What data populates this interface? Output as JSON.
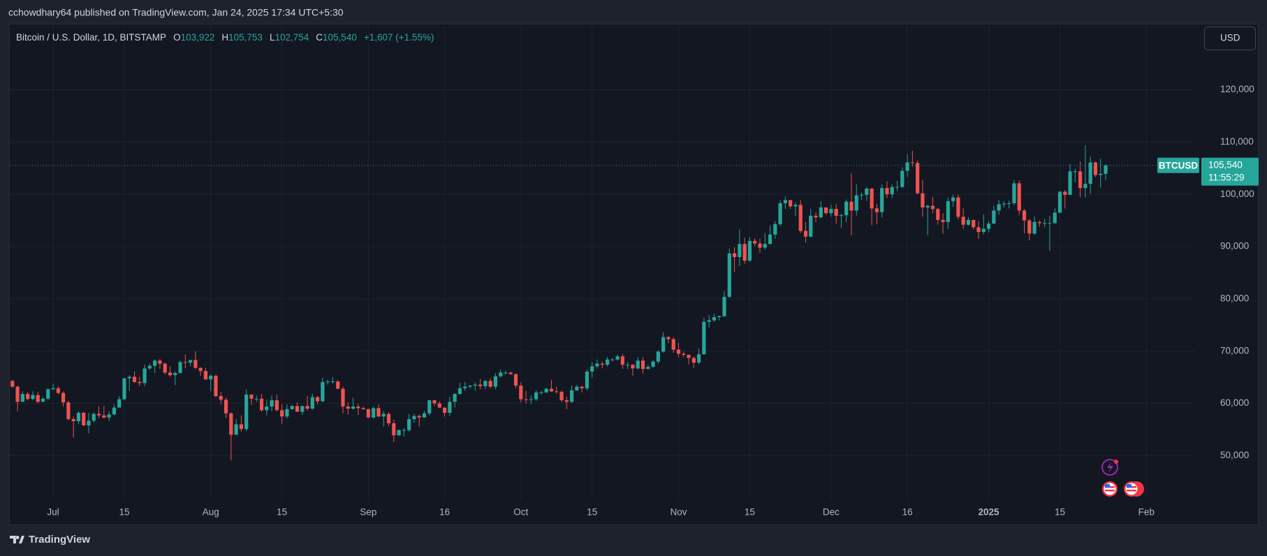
{
  "header": {
    "attribution": "cchowdhary64 published on TradingView.com, Jan 24, 2025 17:34 UTC+5:30",
    "symbol_line": "Bitcoin / U.S. Dollar, 1D, BITSTAMP",
    "ohlc": [
      {
        "key": "O",
        "value": "103,922"
      },
      {
        "key": "H",
        "value": "105,753"
      },
      {
        "key": "L",
        "value": "102,754"
      },
      {
        "key": "C",
        "value": "105,540"
      }
    ],
    "change": "+1,607 (+1.55%)",
    "currency": "USD"
  },
  "price_tag": {
    "symbol": "BTCUSD",
    "price": "105,540",
    "countdown": "11:55:29"
  },
  "footer": {
    "logo": "TradingView"
  },
  "chart_data": {
    "type": "candlestick",
    "up_color": "#26a69a",
    "down_color": "#ef5350",
    "grid": true,
    "ylim": [
      41500,
      132500
    ],
    "yticks": [
      {
        "value": 50000,
        "label": "50,000"
      },
      {
        "value": 60000,
        "label": "60,000"
      },
      {
        "value": 70000,
        "label": "70,000"
      },
      {
        "value": 80000,
        "label": "80,000"
      },
      {
        "value": 90000,
        "label": "90,000"
      },
      {
        "value": 100000,
        "label": "100,000"
      },
      {
        "value": 110000,
        "label": "110,000"
      },
      {
        "value": 120000,
        "label": "120,000"
      }
    ],
    "xticks": [
      {
        "value": "Jul 1",
        "label": "Jul"
      },
      {
        "value": "Jul 15",
        "label": "15"
      },
      {
        "value": "Aug 1",
        "label": "Aug"
      },
      {
        "value": "Aug 15",
        "label": "15"
      },
      {
        "value": "Sep 1",
        "label": "Sep"
      },
      {
        "value": "Sep 16",
        "label": "16"
      },
      {
        "value": "Oct 1",
        "label": "Oct"
      },
      {
        "value": "Oct 15",
        "label": "15"
      },
      {
        "value": "Nov 1",
        "label": "Nov"
      },
      {
        "value": "Nov 15",
        "label": "15"
      },
      {
        "value": "Dec 1",
        "label": "Dec"
      },
      {
        "value": "Dec 16",
        "label": "16"
      },
      {
        "value": "Jan 1",
        "label": "2025"
      },
      {
        "value": "Jan 15",
        "label": "15"
      },
      {
        "value": "Feb 1",
        "label": "Feb"
      }
    ],
    "x": [
      "Jun 23",
      "Jun 24",
      "Jun 25",
      "Jun 26",
      "Jun 27",
      "Jun 28",
      "Jun 29",
      "Jun 30",
      "Jul 1",
      "Jul 2",
      "Jul 3",
      "Jul 4",
      "Jul 5",
      "Jul 6",
      "Jul 7",
      "Jul 8",
      "Jul 9",
      "Jul 10",
      "Jul 11",
      "Jul 12",
      "Jul 13",
      "Jul 14",
      "Jul 15",
      "Jul 16",
      "Jul 17",
      "Jul 18",
      "Jul 19",
      "Jul 20",
      "Jul 21",
      "Jul 22",
      "Jul 23",
      "Jul 24",
      "Jul 25",
      "Jul 26",
      "Jul 27",
      "Jul 28",
      "Jul 29",
      "Jul 30",
      "Jul 31",
      "Aug 1",
      "Aug 2",
      "Aug 3",
      "Aug 4",
      "Aug 5",
      "Aug 6",
      "Aug 7",
      "Aug 8",
      "Aug 9",
      "Aug 10",
      "Aug 11",
      "Aug 12",
      "Aug 13",
      "Aug 14",
      "Aug 15",
      "Aug 16",
      "Aug 17",
      "Aug 18",
      "Aug 19",
      "Aug 20",
      "Aug 21",
      "Aug 22",
      "Aug 23",
      "Aug 24",
      "Aug 25",
      "Aug 26",
      "Aug 27",
      "Aug 28",
      "Aug 29",
      "Aug 30",
      "Aug 31",
      "Sep 1",
      "Sep 2",
      "Sep 3",
      "Sep 4",
      "Sep 5",
      "Sep 6",
      "Sep 7",
      "Sep 8",
      "Sep 9",
      "Sep 10",
      "Sep 11",
      "Sep 12",
      "Sep 13",
      "Sep 14",
      "Sep 15",
      "Sep 16",
      "Sep 17",
      "Sep 18",
      "Sep 19",
      "Sep 20",
      "Sep 21",
      "Sep 22",
      "Sep 23",
      "Sep 24",
      "Sep 25",
      "Sep 26",
      "Sep 27",
      "Sep 28",
      "Sep 29",
      "Sep 30",
      "Oct 1",
      "Oct 2",
      "Oct 3",
      "Oct 4",
      "Oct 5",
      "Oct 6",
      "Oct 7",
      "Oct 8",
      "Oct 9",
      "Oct 10",
      "Oct 11",
      "Oct 12",
      "Oct 13",
      "Oct 14",
      "Oct 15",
      "Oct 16",
      "Oct 17",
      "Oct 18",
      "Oct 19",
      "Oct 20",
      "Oct 21",
      "Oct 22",
      "Oct 23",
      "Oct 24",
      "Oct 25",
      "Oct 26",
      "Oct 27",
      "Oct 28",
      "Oct 29",
      "Oct 30",
      "Oct 31",
      "Nov 1",
      "Nov 2",
      "Nov 3",
      "Nov 4",
      "Nov 5",
      "Nov 6",
      "Nov 7",
      "Nov 8",
      "Nov 9",
      "Nov 10",
      "Nov 11",
      "Nov 12",
      "Nov 13",
      "Nov 14",
      "Nov 15",
      "Nov 16",
      "Nov 17",
      "Nov 18",
      "Nov 19",
      "Nov 20",
      "Nov 21",
      "Nov 22",
      "Nov 23",
      "Nov 24",
      "Nov 25",
      "Nov 26",
      "Nov 27",
      "Nov 28",
      "Nov 29",
      "Nov 30",
      "Dec 1",
      "Dec 2",
      "Dec 3",
      "Dec 4",
      "Dec 5",
      "Dec 6",
      "Dec 7",
      "Dec 8",
      "Dec 9",
      "Dec 10",
      "Dec 11",
      "Dec 12",
      "Dec 13",
      "Dec 14",
      "Dec 15",
      "Dec 16",
      "Dec 17",
      "Dec 18",
      "Dec 19",
      "Dec 20",
      "Dec 21",
      "Dec 22",
      "Dec 23",
      "Dec 24",
      "Dec 25",
      "Dec 26",
      "Dec 27",
      "Dec 28",
      "Dec 29",
      "Dec 30",
      "Dec 31",
      "Jan 1",
      "Jan 2",
      "Jan 3",
      "Jan 4",
      "Jan 5",
      "Jan 6",
      "Jan 7",
      "Jan 8",
      "Jan 9",
      "Jan 10",
      "Jan 11",
      "Jan 12",
      "Jan 13",
      "Jan 14",
      "Jan 15",
      "Jan 16",
      "Jan 17",
      "Jan 18",
      "Jan 19",
      "Jan 20",
      "Jan 21",
      "Jan 22",
      "Jan 23",
      "Jan 24"
    ],
    "open": [
      64300,
      63200,
      60300,
      61800,
      60850,
      61600,
      60300,
      60900,
      62700,
      62900,
      62000,
      60200,
      57000,
      56600,
      58200,
      55800,
      56700,
      58000,
      57700,
      57300,
      57900,
      59200,
      60800,
      64800,
      65100,
      64100,
      63900,
      66700,
      67200,
      68200,
      67600,
      65900,
      65400,
      65800,
      67900,
      67800,
      68300,
      66800,
      66200,
      64600,
      65300,
      61400,
      60700,
      58100,
      54000,
      56000,
      55100,
      61700,
      60900,
      60900,
      58700,
      59400,
      60600,
      58700,
      57500,
      58900,
      59500,
      58400,
      59500,
      59000,
      61200,
      60400,
      64100,
      64200,
      64200,
      62800,
      59400,
      59000,
      59400,
      59100,
      58900,
      57300,
      59100,
      57500,
      58000,
      56200,
      53900,
      54900,
      54900,
      57000,
      57600,
      57300,
      58100,
      60600,
      60000,
      59200,
      58200,
      60300,
      61800,
      62900,
      63200,
      63400,
      63600,
      63300,
      64300,
      63200,
      65200,
      65900,
      65900,
      65600,
      63400,
      60800,
      60700,
      60800,
      62100,
      62100,
      62800,
      62300,
      62200,
      60600,
      60300,
      62500,
      63200,
      62900,
      66100,
      67100,
      67600,
      67400,
      68400,
      68400,
      69000,
      67400,
      67400,
      66700,
      68200,
      66600,
      67000,
      68000,
      69900,
      72700,
      72300,
      70300,
      69500,
      69300,
      68700,
      67800,
      69400,
      75600,
      75900,
      76500,
      76700,
      80400,
      88700,
      88000,
      90500,
      87300,
      91100,
      90600,
      89800,
      90500,
      92300,
      94300,
      98300,
      98900,
      97700,
      98000,
      93000,
      91900,
      95900,
      95600,
      97500,
      96400,
      97200,
      95900,
      96000,
      98600,
      96900,
      99800,
      99900,
      101100,
      97300,
      96600,
      101200,
      100000,
      101400,
      101400,
      104500,
      106100,
      106000,
      100200,
      97500,
      97800,
      97200,
      95100,
      94700,
      98700,
      99400,
      95700,
      94200,
      95100,
      93700,
      92800,
      93400,
      94400,
      96900,
      98100,
      98200,
      98300,
      102100,
      96900,
      95000,
      92500,
      94700,
      94500,
      94500,
      94500,
      96500,
      100500,
      99900,
      104400,
      104400,
      101200,
      102000,
      106100,
      103700,
      103922
    ],
    "high": [
      64500,
      63400,
      62300,
      62200,
      62300,
      62200,
      61200,
      62900,
      63800,
      63300,
      62300,
      60500,
      57500,
      58500,
      58400,
      58200,
      58300,
      59400,
      59500,
      58500,
      59800,
      61400,
      64900,
      65400,
      66100,
      65100,
      67400,
      67600,
      68400,
      68500,
      67800,
      67100,
      66100,
      68200,
      69400,
      68300,
      70000,
      66900,
      66800,
      65600,
      65500,
      62200,
      61100,
      58300,
      57000,
      57700,
      62700,
      61700,
      61500,
      61800,
      60700,
      61500,
      61700,
      59800,
      59800,
      59700,
      60200,
      59600,
      61400,
      61800,
      61400,
      64900,
      64500,
      65000,
      64500,
      63200,
      60200,
      61100,
      59900,
      59400,
      59000,
      59400,
      59800,
      58500,
      58300,
      56900,
      55000,
      55300,
      58000,
      58000,
      57900,
      58600,
      60700,
      60700,
      60400,
      59200,
      61300,
      62000,
      63900,
      64100,
      63500,
      64000,
      64700,
      64500,
      64800,
      65800,
      66500,
      66300,
      66100,
      65700,
      64000,
      62400,
      61500,
      62500,
      62400,
      63000,
      64500,
      63200,
      62500,
      61300,
      63400,
      63500,
      63300,
      66500,
      67900,
      68400,
      68000,
      68900,
      68700,
      69400,
      69500,
      67900,
      67500,
      68800,
      68800,
      67400,
      68300,
      70200,
      73600,
      72900,
      72700,
      71600,
      69900,
      69400,
      69000,
      70500,
      76400,
      76900,
      77200,
      76800,
      81500,
      89600,
      89900,
      93300,
      91700,
      91800,
      91600,
      91500,
      92600,
      94000,
      94900,
      98900,
      99600,
      98800,
      98500,
      98900,
      94700,
      97200,
      96600,
      98700,
      97500,
      98000,
      98100,
      96300,
      99000,
      104000,
      101900,
      100400,
      101400,
      101200,
      98200,
      101900,
      102500,
      101900,
      102600,
      105200,
      107700,
      108300,
      106500,
      102800,
      98000,
      99500,
      97400,
      96400,
      99400,
      99900,
      99900,
      97300,
      95600,
      95200,
      94900,
      96100,
      94900,
      97800,
      98900,
      98700,
      98800,
      102700,
      102700,
      97200,
      95300,
      95800,
      95000,
      95300,
      95900,
      97300,
      100600,
      100800,
      105800,
      104900,
      106300,
      109400,
      107200,
      106300,
      106800,
      105753
    ],
    "low": [
      63000,
      58500,
      60300,
      60600,
      60600,
      60000,
      60300,
      60600,
      62600,
      61800,
      59400,
      56800,
      53500,
      56000,
      55700,
      54300,
      56300,
      57200,
      57100,
      56600,
      57700,
      59200,
      60600,
      62400,
      63900,
      63300,
      63300,
      66400,
      65800,
      66600,
      65500,
      65100,
      63500,
      65800,
      66700,
      67100,
      66600,
      65300,
      64500,
      62300,
      61200,
      59800,
      57200,
      49100,
      54000,
      54600,
      54700,
      59700,
      60300,
      58400,
      57700,
      58500,
      58500,
      56100,
      57100,
      58800,
      58400,
      57800,
      58600,
      58800,
      59800,
      60300,
      63600,
      63800,
      62800,
      58100,
      57900,
      58800,
      57800,
      58800,
      57200,
      57100,
      57400,
      55600,
      55700,
      52600,
      53800,
      53700,
      54600,
      56300,
      55600,
      57300,
      57700,
      59500,
      59100,
      57500,
      57600,
      59200,
      61700,
      62400,
      62800,
      62400,
      62700,
      62700,
      62900,
      62700,
      64900,
      65500,
      65500,
      62900,
      60200,
      60000,
      59900,
      60500,
      61700,
      62000,
      62200,
      61900,
      60300,
      58900,
      60100,
      62400,
      62100,
      62500,
      64900,
      66700,
      66700,
      67100,
      68100,
      68200,
      66600,
      66600,
      65300,
      66500,
      65700,
      66500,
      66800,
      67600,
      69700,
      71500,
      69700,
      68800,
      68900,
      67500,
      66800,
      67500,
      69400,
      74500,
      75600,
      75900,
      76500,
      80200,
      85100,
      86300,
      86700,
      87100,
      90100,
      88800,
      89400,
      90400,
      91500,
      94000,
      97200,
      97200,
      95800,
      92600,
      90800,
      91800,
      94700,
      95400,
      96100,
      95700,
      94400,
      93600,
      94700,
      92200,
      95900,
      98900,
      98700,
      94100,
      94300,
      95600,
      99300,
      99300,
      100600,
      101200,
      103300,
      105300,
      100000,
      95700,
      92200,
      96400,
      94200,
      92500,
      93400,
      97600,
      95200,
      93400,
      94000,
      93300,
      91500,
      92300,
      92700,
      94300,
      96100,
      97500,
      97300,
      97900,
      96100,
      92500,
      91200,
      92200,
      93800,
      93700,
      89200,
      94300,
      96400,
      97300,
      99900,
      102300,
      99500,
      99400,
      100100,
      103300,
      101300,
      102754
    ],
    "close": [
      63200,
      60300,
      61800,
      60850,
      61600,
      60300,
      60900,
      62700,
      62900,
      62000,
      60200,
      57000,
      56600,
      58200,
      55800,
      56700,
      58000,
      57700,
      57300,
      57900,
      59200,
      60800,
      64800,
      65100,
      64100,
      63900,
      66700,
      67200,
      68200,
      67600,
      65900,
      65400,
      65800,
      67900,
      67800,
      68300,
      66800,
      66200,
      64600,
      65300,
      61400,
      60700,
      58100,
      54000,
      56000,
      55100,
      61700,
      60900,
      60900,
      58700,
      59400,
      60600,
      58700,
      57500,
      58900,
      59500,
      58400,
      59500,
      59000,
      61200,
      60400,
      64100,
      64200,
      64200,
      62800,
      59400,
      59000,
      59400,
      59100,
      58900,
      57300,
      59100,
      57500,
      58000,
      56200,
      53900,
      54900,
      54900,
      57000,
      57600,
      57300,
      58100,
      60600,
      60000,
      59200,
      58200,
      60300,
      61800,
      62900,
      63200,
      63400,
      63600,
      63300,
      64300,
      63200,
      65200,
      65900,
      65900,
      65600,
      63400,
      60800,
      60700,
      60800,
      62100,
      62100,
      62800,
      62300,
      62200,
      60600,
      60300,
      62500,
      63200,
      62900,
      66100,
      67100,
      67600,
      67400,
      68400,
      68400,
      69000,
      67400,
      67400,
      66700,
      68200,
      66600,
      67000,
      68000,
      69900,
      72700,
      72300,
      70300,
      69500,
      69300,
      68700,
      67800,
      69400,
      75600,
      75900,
      76500,
      76700,
      80400,
      88700,
      88000,
      90500,
      87300,
      91100,
      90600,
      89800,
      90500,
      92300,
      94300,
      98300,
      98900,
      97700,
      98000,
      93000,
      91900,
      95900,
      95600,
      97500,
      96400,
      97200,
      95900,
      96000,
      98600,
      96900,
      99800,
      99900,
      101100,
      97300,
      96600,
      101200,
      100000,
      101400,
      101400,
      104500,
      106100,
      106000,
      100200,
      97500,
      97800,
      97200,
      95100,
      94700,
      98700,
      99400,
      95700,
      94200,
      95100,
      93700,
      92800,
      93400,
      94400,
      96900,
      98100,
      98200,
      98300,
      102100,
      96900,
      95000,
      92500,
      94700,
      94500,
      94500,
      94500,
      96500,
      100500,
      99900,
      104400,
      104400,
      101200,
      102000,
      106100,
      103700,
      103933,
      105540
    ]
  }
}
